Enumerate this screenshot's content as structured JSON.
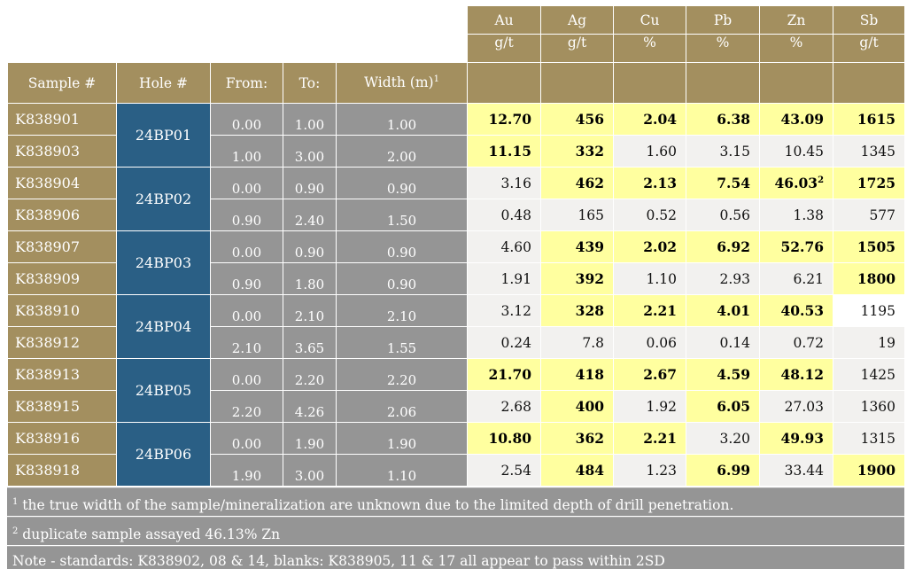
{
  "headers": {
    "sample": "Sample #",
    "hole": "Hole #",
    "from": "From:",
    "to": "To:",
    "width": "Width (m)",
    "width_sup": "1",
    "elements": [
      {
        "name": "Au",
        "unit": "g/t"
      },
      {
        "name": "Ag",
        "unit": "g/t"
      },
      {
        "name": "Cu",
        "unit": "%"
      },
      {
        "name": "Pb",
        "unit": "%"
      },
      {
        "name": "Zn",
        "unit": "%"
      },
      {
        "name": "Sb",
        "unit": "g/t"
      }
    ]
  },
  "holes": [
    "24BP01",
    "24BP02",
    "24BP03",
    "24BP04",
    "24BP05",
    "24BP06"
  ],
  "rows": [
    {
      "sample": "K838901",
      "from": "0.00",
      "to": "1.00",
      "width": "1.00",
      "values": [
        {
          "v": "12.70",
          "hi": true
        },
        {
          "v": "456",
          "hi": true
        },
        {
          "v": "2.04",
          "hi": true
        },
        {
          "v": "6.38",
          "hi": true
        },
        {
          "v": "43.09",
          "hi": true
        },
        {
          "v": "1615",
          "hi": true
        }
      ]
    },
    {
      "sample": "K838903",
      "from": "1.00",
      "to": "3.00",
      "width": "2.00",
      "values": [
        {
          "v": "11.15",
          "hi": true
        },
        {
          "v": "332",
          "hi": true
        },
        {
          "v": "1.60",
          "hi": false
        },
        {
          "v": "3.15",
          "hi": false
        },
        {
          "v": "10.45",
          "hi": false
        },
        {
          "v": "1345",
          "hi": false
        }
      ]
    },
    {
      "sample": "K838904",
      "from": "0.00",
      "to": "0.90",
      "width": "0.90",
      "values": [
        {
          "v": "3.16",
          "hi": false
        },
        {
          "v": "462",
          "hi": true
        },
        {
          "v": "2.13",
          "hi": true
        },
        {
          "v": "7.54",
          "hi": true
        },
        {
          "v": "46.03",
          "hi": true,
          "sup": "2"
        },
        {
          "v": "1725",
          "hi": true
        }
      ]
    },
    {
      "sample": "K838906",
      "from": "0.90",
      "to": "2.40",
      "width": "1.50",
      "values": [
        {
          "v": "0.48",
          "hi": false
        },
        {
          "v": "165",
          "hi": false
        },
        {
          "v": "0.52",
          "hi": false
        },
        {
          "v": "0.56",
          "hi": false
        },
        {
          "v": "1.38",
          "hi": false
        },
        {
          "v": "577",
          "hi": false
        }
      ]
    },
    {
      "sample": "K838907",
      "from": "0.00",
      "to": "0.90",
      "width": "0.90",
      "values": [
        {
          "v": "4.60",
          "hi": false
        },
        {
          "v": "439",
          "hi": true
        },
        {
          "v": "2.02",
          "hi": true
        },
        {
          "v": "6.92",
          "hi": true
        },
        {
          "v": "52.76",
          "hi": true
        },
        {
          "v": "1505",
          "hi": true
        }
      ]
    },
    {
      "sample": "K838909",
      "from": "0.90",
      "to": "1.80",
      "width": "0.90",
      "values": [
        {
          "v": "1.91",
          "hi": false
        },
        {
          "v": "392",
          "hi": true
        },
        {
          "v": "1.10",
          "hi": false
        },
        {
          "v": "2.93",
          "hi": false
        },
        {
          "v": "6.21",
          "hi": false
        },
        {
          "v": "1800",
          "hi": true
        }
      ]
    },
    {
      "sample": "K838910",
      "from": "0.00",
      "to": "2.10",
      "width": "2.10",
      "values": [
        {
          "v": "3.12",
          "hi": false
        },
        {
          "v": "328",
          "hi": true
        },
        {
          "v": "2.21",
          "hi": true
        },
        {
          "v": "4.01",
          "hi": true
        },
        {
          "v": "40.53",
          "hi": true
        },
        {
          "v": "1195",
          "hi": false,
          "white": true
        }
      ]
    },
    {
      "sample": "K838912",
      "from": "2.10",
      "to": "3.65",
      "width": "1.55",
      "values": [
        {
          "v": "0.24",
          "hi": false
        },
        {
          "v": "7.8",
          "hi": false
        },
        {
          "v": "0.06",
          "hi": false
        },
        {
          "v": "0.14",
          "hi": false
        },
        {
          "v": "0.72",
          "hi": false
        },
        {
          "v": "19",
          "hi": false
        }
      ]
    },
    {
      "sample": "K838913",
      "from": "0.00",
      "to": "2.20",
      "width": "2.20",
      "values": [
        {
          "v": "21.70",
          "hi": true
        },
        {
          "v": "418",
          "hi": true
        },
        {
          "v": "2.67",
          "hi": true
        },
        {
          "v": "4.59",
          "hi": true
        },
        {
          "v": "48.12",
          "hi": true
        },
        {
          "v": "1425",
          "hi": false
        }
      ]
    },
    {
      "sample": "K838915",
      "from": "2.20",
      "to": "4.26",
      "width": "2.06",
      "values": [
        {
          "v": "2.68",
          "hi": false
        },
        {
          "v": "400",
          "hi": true
        },
        {
          "v": "1.92",
          "hi": false
        },
        {
          "v": "6.05",
          "hi": true
        },
        {
          "v": "27.03",
          "hi": false
        },
        {
          "v": "1360",
          "hi": false
        }
      ]
    },
    {
      "sample": "K838916",
      "from": "0.00",
      "to": "1.90",
      "width": "1.90",
      "values": [
        {
          "v": "10.80",
          "hi": true
        },
        {
          "v": "362",
          "hi": true
        },
        {
          "v": "2.21",
          "hi": true
        },
        {
          "v": "3.20",
          "hi": false
        },
        {
          "v": "49.93",
          "hi": true
        },
        {
          "v": "1315",
          "hi": false
        }
      ]
    },
    {
      "sample": "K838918",
      "from": "1.90",
      "to": "3.00",
      "width": "1.10",
      "values": [
        {
          "v": "2.54",
          "hi": false
        },
        {
          "v": "484",
          "hi": true
        },
        {
          "v": "1.23",
          "hi": false
        },
        {
          "v": "6.99",
          "hi": true
        },
        {
          "v": "33.44",
          "hi": false
        },
        {
          "v": "1900",
          "hi": true
        }
      ]
    }
  ],
  "footnotes": [
    {
      "sup": "1",
      "text": " the true width of the sample/mineralization are unknown due to the limited depth of drill penetration."
    },
    {
      "sup": "2",
      "text": " duplicate sample assayed 46.13% Zn"
    },
    {
      "sup": "",
      "text": "Note - standards: K838902, 08 & 14, blanks: K838905, 11 & 17 all appear to pass within 2SD"
    }
  ],
  "colors": {
    "header_gold": "#a38f5f",
    "hole_blue": "#2a5f85",
    "interval_gray": "#959595",
    "highlight_yellow": "#ffff9f",
    "value_bg": "#f2f1ef"
  }
}
